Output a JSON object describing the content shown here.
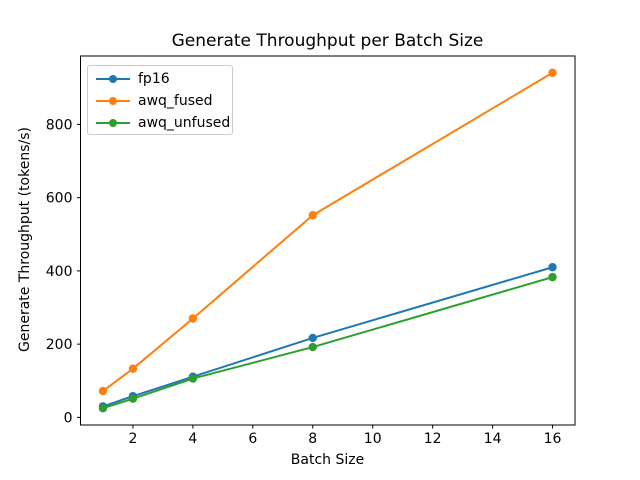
{
  "chart_data": {
    "type": "line",
    "title": "Generate Throughput per Batch Size",
    "xlabel": "Batch Size",
    "ylabel": "Generate Throughput (tokens/s)",
    "x": [
      1,
      2,
      4,
      8,
      16
    ],
    "series": [
      {
        "name": "fp16",
        "color": "#1f77b4",
        "values": [
          30,
          58,
          111,
          217,
          410
        ]
      },
      {
        "name": "awq_fused",
        "color": "#ff7f0e",
        "values": [
          72,
          133,
          270,
          552,
          941
        ]
      },
      {
        "name": "awq_unfused",
        "color": "#2ca02c",
        "values": [
          25,
          51,
          106,
          192,
          383
        ]
      }
    ],
    "xticks": [
      2,
      4,
      6,
      8,
      10,
      12,
      14,
      16
    ],
    "yticks": [
      0,
      200,
      400,
      600,
      800
    ],
    "xlim": [
      0.25,
      16.75
    ],
    "ylim": [
      -20.8,
      986.8
    ],
    "legend_position": "upper left",
    "grid": false,
    "marker": "circle",
    "axis_color": "#000000",
    "text_color": "#000000",
    "legend_border_color": "#cccccc",
    "background_color": "#ffffff"
  }
}
